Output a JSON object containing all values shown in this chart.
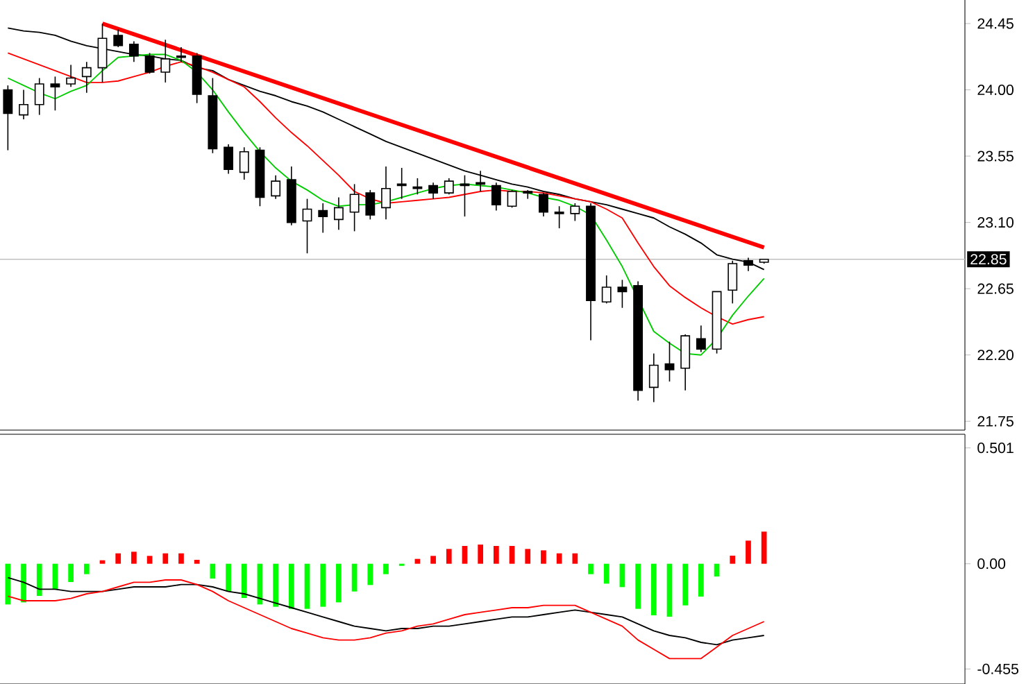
{
  "chart_data": [
    {
      "type": "candlestick",
      "categories": [
        null,
        null,
        null,
        null,
        null,
        null,
        null,
        null,
        null,
        null,
        null,
        null,
        null,
        null,
        null,
        null,
        null,
        null,
        null,
        null,
        null,
        null,
        null,
        null,
        null,
        null,
        null,
        null,
        null,
        null,
        null,
        null,
        null,
        null,
        null,
        null,
        null,
        null,
        null,
        null,
        null,
        null,
        null,
        null,
        null,
        null,
        null,
        null,
        null
      ],
      "color": "#000000",
      "ohlc": [
        [
          24.0,
          24.03,
          23.59,
          23.84
        ],
        [
          23.83,
          24.0,
          23.8,
          23.9
        ],
        [
          23.9,
          24.08,
          23.83,
          24.04
        ],
        [
          24.04,
          24.09,
          23.86,
          24.02
        ],
        [
          24.04,
          24.17,
          24.02,
          24.08
        ],
        [
          24.09,
          24.19,
          23.98,
          24.15
        ],
        [
          24.15,
          24.45,
          24.05,
          24.35
        ],
        [
          24.37,
          24.41,
          24.29,
          24.3
        ],
        [
          24.31,
          24.33,
          24.19,
          24.23
        ],
        [
          24.23,
          24.25,
          24.11,
          24.12
        ],
        [
          24.12,
          24.34,
          24.05,
          24.21
        ],
        [
          24.23,
          24.29,
          24.19,
          24.22
        ],
        [
          24.23,
          24.25,
          23.91,
          23.97
        ],
        [
          23.96,
          24.08,
          23.57,
          23.6
        ],
        [
          23.61,
          23.63,
          23.43,
          23.46
        ],
        [
          23.44,
          23.61,
          23.39,
          23.58
        ],
        [
          23.59,
          23.61,
          23.21,
          23.27
        ],
        [
          23.28,
          23.42,
          23.26,
          23.38
        ],
        [
          23.39,
          23.48,
          23.08,
          23.1
        ],
        [
          23.11,
          23.26,
          22.89,
          23.19
        ],
        [
          23.18,
          23.23,
          23.03,
          23.14
        ],
        [
          23.12,
          23.27,
          23.05,
          23.2
        ],
        [
          23.17,
          23.36,
          23.04,
          23.29
        ],
        [
          23.3,
          23.32,
          23.12,
          23.15
        ],
        [
          23.2,
          23.48,
          23.12,
          23.33
        ],
        [
          23.36,
          23.47,
          23.26,
          23.35
        ],
        [
          23.34,
          23.4,
          23.29,
          23.33
        ],
        [
          23.35,
          23.37,
          23.26,
          23.3
        ],
        [
          23.3,
          23.4,
          23.29,
          23.38
        ],
        [
          23.36,
          23.42,
          23.14,
          23.35
        ],
        [
          23.37,
          23.45,
          23.31,
          23.36
        ],
        [
          23.35,
          23.37,
          23.18,
          23.22
        ],
        [
          23.21,
          23.32,
          23.2,
          23.31
        ],
        [
          23.31,
          23.32,
          23.26,
          23.3
        ],
        [
          23.29,
          23.3,
          23.14,
          23.17
        ],
        [
          23.17,
          23.21,
          23.06,
          23.16
        ],
        [
          23.16,
          23.23,
          23.11,
          23.21
        ],
        [
          23.21,
          23.23,
          22.3,
          22.57
        ],
        [
          22.56,
          22.74,
          22.55,
          22.66
        ],
        [
          22.66,
          22.71,
          22.52,
          22.63
        ],
        [
          22.67,
          22.7,
          21.89,
          21.96
        ],
        [
          21.98,
          22.21,
          21.88,
          22.13
        ],
        [
          22.14,
          22.29,
          22.02,
          22.1
        ],
        [
          22.11,
          22.34,
          21.96,
          22.33
        ],
        [
          22.31,
          22.4,
          22.22,
          22.24
        ],
        [
          22.24,
          22.63,
          22.21,
          22.63
        ],
        [
          22.64,
          22.84,
          22.55,
          22.82
        ],
        [
          22.84,
          22.86,
          22.77,
          22.81
        ],
        [
          22.83,
          22.85,
          22.82,
          22.85
        ]
      ],
      "series": [
        {
          "type": "line",
          "color": "#000000",
          "values": [
            24.42,
            24.4,
            24.39,
            24.37,
            24.33,
            24.3,
            24.28,
            24.26,
            24.24,
            24.23,
            24.21,
            24.2,
            24.15,
            24.13,
            24.07,
            24.03,
            23.99,
            23.96,
            23.92,
            23.89,
            23.85,
            23.8,
            23.75,
            23.7,
            23.65,
            23.61,
            23.57,
            23.53,
            23.49,
            23.45,
            23.42,
            23.39,
            23.36,
            23.34,
            23.31,
            23.29,
            23.26,
            23.24,
            23.22,
            23.19,
            23.16,
            23.13,
            23.07,
            23.02,
            22.96,
            22.88,
            22.85,
            22.83,
            22.78
          ]
        },
        {
          "type": "line",
          "color": "#ff0000",
          "values": [
            24.25,
            24.21,
            24.17,
            24.13,
            24.09,
            24.05,
            24.05,
            24.06,
            24.09,
            24.12,
            24.16,
            24.19,
            24.16,
            24.12,
            24.07,
            24.02,
            23.92,
            23.81,
            23.71,
            23.62,
            23.52,
            23.42,
            23.31,
            23.26,
            23.23,
            23.24,
            23.25,
            23.26,
            23.27,
            23.29,
            23.31,
            23.32,
            23.31,
            23.31,
            23.3,
            23.28,
            23.26,
            23.24,
            23.19,
            23.13,
            22.96,
            22.8,
            22.67,
            22.59,
            22.52,
            22.46,
            22.41,
            22.44,
            22.46
          ]
        },
        {
          "type": "line",
          "color": "#00cc00",
          "values": [
            24.08,
            24.03,
            23.98,
            23.94,
            23.99,
            24.03,
            24.13,
            24.22,
            24.23,
            24.24,
            24.24,
            24.2,
            24.12,
            24.0,
            23.85,
            23.71,
            23.58,
            23.47,
            23.38,
            23.32,
            23.25,
            23.21,
            23.22,
            23.22,
            23.24,
            23.27,
            23.3,
            23.33,
            23.35,
            23.36,
            23.35,
            23.34,
            23.32,
            23.3,
            23.27,
            23.25,
            23.21,
            23.15,
            22.98,
            22.8,
            null,
            22.36,
            22.28,
            22.21,
            22.2,
            22.31,
            22.47,
            22.6,
            22.72
          ]
        },
        {
          "type": "line",
          "color": "#ff0000",
          "values": [
            null,
            null,
            null,
            null,
            null,
            null,
            24.45,
            null,
            null,
            null,
            null,
            null,
            null,
            null,
            null,
            null,
            null,
            null,
            null,
            null,
            null,
            null,
            null,
            null,
            null,
            null,
            null,
            null,
            null,
            null,
            null,
            null,
            null,
            null,
            null,
            null,
            null,
            null,
            null,
            null,
            null,
            null,
            null,
            null,
            null,
            null,
            null,
            null,
            22.93
          ]
        }
      ],
      "ref_lines": [
        {
          "axis": "y",
          "value": 22.85,
          "label": "22.85",
          "color": "#c0c0c0"
        }
      ],
      "ylim": [
        21.69,
        24.61
      ],
      "yticks": [
        24.45,
        {
          "value": 24,
          "label": "24.00"
        },
        23.55,
        {
          "value": 23.1,
          "label": "23.10"
        },
        22.65,
        {
          "value": 22.2,
          "label": "22.20"
        },
        21.75
      ],
      "tick_labels": "y"
    },
    {
      "type": "bar",
      "categories": [
        null,
        null,
        null,
        null,
        null,
        null,
        null,
        null,
        null,
        null,
        null,
        null,
        null,
        null,
        null,
        null,
        null,
        null,
        null,
        null,
        null,
        null,
        null,
        null,
        null,
        null,
        null,
        null,
        null,
        null,
        null,
        null,
        null,
        null,
        null,
        null,
        null,
        null,
        null,
        null,
        null,
        null,
        null,
        null,
        null,
        null,
        null,
        null,
        null
      ],
      "series": [
        {
          "type": "bar",
          "values": [
            -0.176,
            -0.167,
            -0.139,
            -0.111,
            -0.079,
            -0.045,
            0.015,
            0.045,
            0.052,
            0.034,
            0.045,
            0.045,
            0.017,
            -0.064,
            -0.12,
            -0.148,
            -0.176,
            -0.186,
            -0.195,
            -0.195,
            -0.186,
            -0.167,
            -0.12,
            -0.092,
            -0.045,
            -0.009,
            0.021,
            0.034,
            0.064,
            0.077,
            0.083,
            0.077,
            0.077,
            0.064,
            0.058,
            0.045,
            0.045,
            -0.045,
            -0.086,
            -0.101,
            -0.195,
            -0.223,
            -0.229,
            -0.18,
            -0.142,
            -0.055,
            0.035,
            0.1,
            0.139
          ],
          "colors": [
            "#00ff00",
            "#00ff00",
            "#00ff00",
            "#00ff00",
            "#00ff00",
            "#00ff00",
            "#ff0000",
            "#ff0000",
            "#ff0000",
            "#ff0000",
            "#ff0000",
            "#ff0000",
            "#ff0000",
            "#00ff00",
            "#00ff00",
            "#00ff00",
            "#00ff00",
            "#00ff00",
            "#00ff00",
            "#00ff00",
            "#00ff00",
            "#00ff00",
            "#00ff00",
            "#00ff00",
            "#00ff00",
            "#00ff00",
            "#ff0000",
            "#ff0000",
            "#ff0000",
            "#ff0000",
            "#ff0000",
            "#ff0000",
            "#ff0000",
            "#ff0000",
            "#ff0000",
            "#ff0000",
            "#ff0000",
            "#00ff00",
            "#00ff00",
            "#00ff00",
            "#00ff00",
            "#00ff00",
            "#00ff00",
            "#00ff00",
            "#00ff00",
            "#00ff00",
            "#ff0000",
            "#ff0000",
            "#ff0000"
          ]
        },
        {
          "type": "line",
          "color": "#000000",
          "values": [
            -0.06,
            -0.08,
            -0.11,
            -0.11,
            -0.12,
            -0.12,
            -0.12,
            -0.11,
            -0.1,
            -0.1,
            -0.1,
            -0.09,
            -0.09,
            -0.1,
            -0.12,
            -0.13,
            -0.15,
            -0.17,
            -0.19,
            -0.21,
            -0.23,
            -0.25,
            -0.27,
            -0.28,
            -0.29,
            -0.28,
            -0.28,
            -0.27,
            -0.27,
            -0.26,
            -0.25,
            -0.24,
            -0.23,
            -0.23,
            -0.22,
            -0.21,
            -0.2,
            -0.21,
            -0.22,
            -0.23,
            -0.26,
            -0.29,
            -0.31,
            -0.32,
            -0.34,
            -0.35,
            -0.33,
            -0.32,
            -0.31
          ]
        },
        {
          "type": "line",
          "color": "#ff0000",
          "values": [
            -0.14,
            -0.16,
            -0.16,
            -0.16,
            -0.15,
            -0.13,
            -0.12,
            -0.1,
            -0.08,
            -0.08,
            -0.07,
            -0.07,
            -0.09,
            -0.12,
            -0.16,
            -0.19,
            -0.22,
            -0.25,
            -0.28,
            -0.3,
            -0.32,
            -0.33,
            -0.33,
            -0.32,
            -0.3,
            -0.29,
            -0.27,
            -0.26,
            -0.24,
            -0.22,
            -0.21,
            -0.2,
            -0.19,
            -0.19,
            -0.18,
            -0.18,
            -0.18,
            -0.21,
            -0.24,
            -0.27,
            -0.33,
            -0.37,
            -0.41,
            -0.41,
            -0.41,
            -0.36,
            -0.31,
            -0.28,
            -0.25
          ]
        }
      ],
      "ylim": [
        -0.52,
        0.56
      ],
      "yticks": [
        0.501,
        {
          "value": 0,
          "label": "0.00"
        },
        -0.455
      ],
      "tick_labels": "y"
    }
  ]
}
